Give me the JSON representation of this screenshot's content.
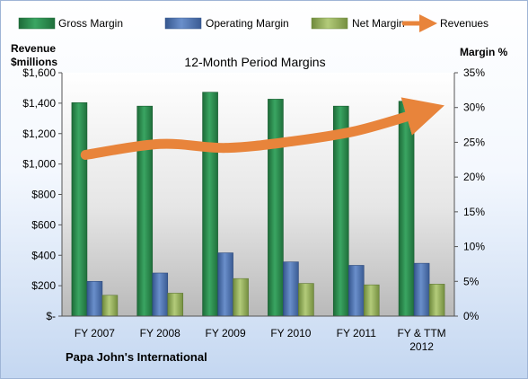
{
  "chart_data": {
    "type": "bar",
    "title": "12-Month Period Margins",
    "company": "Papa John's International",
    "ylabel_left": [
      "Revenue",
      "$millions"
    ],
    "ylabel_right": "Margin %",
    "categories": [
      [
        "FY 2007"
      ],
      [
        "FY 2008"
      ],
      [
        "FY 2009"
      ],
      [
        "FY 2010"
      ],
      [
        "FY 2011"
      ],
      [
        "FY & TTM",
        "2012"
      ]
    ],
    "left_ticks": [
      "$-",
      "$200",
      "$400",
      "$600",
      "$800",
      "$1,000",
      "$1,200",
      "$1,400",
      "$1,600"
    ],
    "right_ticks": [
      "0%",
      "5%",
      "10%",
      "15%",
      "20%",
      "25%",
      "30%",
      "35%"
    ],
    "ylim_left": [
      0,
      1600
    ],
    "ylim_right": [
      0,
      35
    ],
    "series": [
      {
        "name": "Gross Margin",
        "kind": "bar",
        "axis": "right",
        "color": "#2e8b4f",
        "values": [
          30.7,
          30.2,
          32.2,
          31.2,
          30.2,
          30.9
        ]
      },
      {
        "name": "Operating Margin",
        "kind": "bar",
        "axis": "right",
        "color": "#4a6faa",
        "values": [
          5.0,
          6.2,
          9.1,
          7.8,
          7.3,
          7.6
        ]
      },
      {
        "name": "Net Margin",
        "kind": "bar",
        "axis": "right",
        "color": "#92ad5a",
        "values": [
          3.0,
          3.3,
          5.4,
          4.7,
          4.5,
          4.6
        ]
      },
      {
        "name": "Revenues",
        "kind": "line",
        "axis": "left",
        "color": "#e8843b",
        "values": [
          1060,
          1132,
          1106,
          1148,
          1218,
          1342
        ]
      }
    ],
    "legend_position": "top",
    "grid": false
  }
}
